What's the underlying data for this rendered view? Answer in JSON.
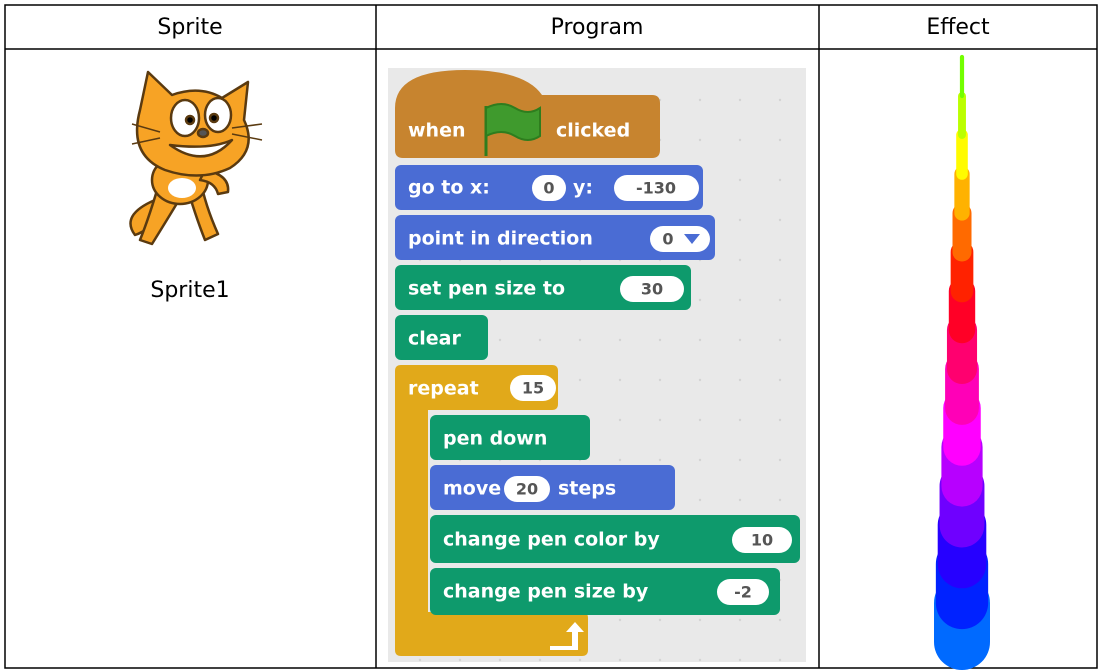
{
  "table": {
    "headers": [
      "Sprite",
      "Program",
      "Effect"
    ],
    "sprite": {
      "name": "Sprite1"
    },
    "program": {
      "blocks": [
        [
          "when",
          "clicked"
        ],
        [
          "go to x:",
          "0",
          "y:",
          "-130"
        ],
        [
          "point in direction",
          "0"
        ],
        [
          "set pen size to",
          "30"
        ],
        [
          "clear"
        ],
        [
          "repeat",
          "15"
        ],
        [
          "pen down"
        ],
        [
          "move",
          "20",
          "steps"
        ],
        [
          "change pen color by",
          "10"
        ],
        [
          "change pen size by",
          "-2"
        ]
      ]
    }
  }
}
